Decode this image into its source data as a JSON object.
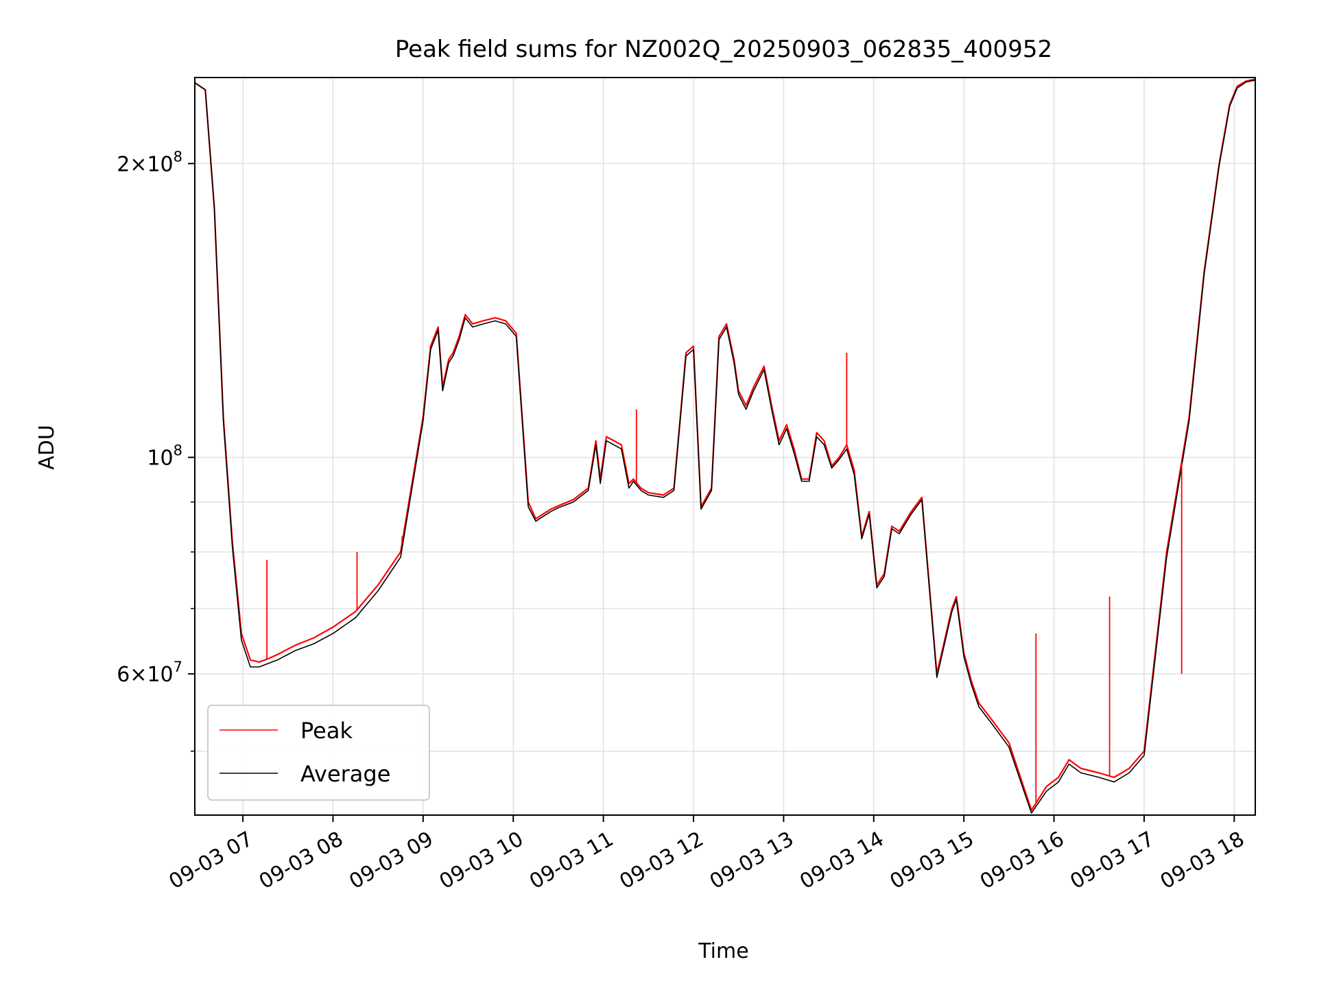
{
  "chart_data": {
    "type": "line",
    "title": "Peak field sums for NZ002Q_20250903_062835_400952",
    "xlabel": "Time",
    "ylabel": "ADU",
    "y_scale": "log",
    "ylim": [
      43000000,
      245000000
    ],
    "xlim": [
      "09-03 06:28",
      "09-03 18:14"
    ],
    "grid": true,
    "legend_position": "lower-left",
    "x_ticks": [
      "09-03 07",
      "09-03 08",
      "09-03 09",
      "09-03 10",
      "09-03 11",
      "09-03 12",
      "09-03 13",
      "09-03 14",
      "09-03 15",
      "09-03 16",
      "09-03 17",
      "09-03 18"
    ],
    "y_ticks": [
      {
        "value": 60000000,
        "base": "6",
        "mult": "×",
        "exp_base": "10",
        "exp": "7"
      },
      {
        "value": 100000000,
        "base": "",
        "mult": "",
        "exp_base": "10",
        "exp": "8"
      },
      {
        "value": 200000000,
        "base": "2",
        "mult": "×",
        "exp_base": "10",
        "exp": "8"
      }
    ],
    "colors": {
      "peak": "#ff0000",
      "average": "#000000",
      "grid": "#e0e0e0"
    },
    "series": [
      {
        "name": "Peak",
        "color": "#ff0000",
        "x": [
          "09-03 06:28",
          "09-03 06:35",
          "09-03 06:41",
          "09-03 06:47",
          "09-03 06:53",
          "09-03 06:59",
          "09-03 07:05",
          "09-03 07:11",
          "09-03 07:17",
          "09-03 07:23",
          "09-03 07:29",
          "09-03 07:35",
          "09-03 07:47",
          "09-03 08:00",
          "09-03 08:15",
          "09-03 08:30",
          "09-03 08:45",
          "09-03 09:00",
          "09-03 09:05",
          "09-03 09:10",
          "09-03 09:13",
          "09-03 09:17",
          "09-03 09:20",
          "09-03 09:24",
          "09-03 09:28",
          "09-03 09:33",
          "09-03 09:40",
          "09-03 09:48",
          "09-03 09:55",
          "09-03 10:02",
          "09-03 10:10",
          "09-03 10:15",
          "09-03 10:20",
          "09-03 10:25",
          "09-03 10:30",
          "09-03 10:40",
          "09-03 10:50",
          "09-03 10:55",
          "09-03 10:58",
          "09-03 11:02",
          "09-03 11:07",
          "09-03 11:12",
          "09-03 11:17",
          "09-03 11:20",
          "09-03 11:25",
          "09-03 11:30",
          "09-03 11:40",
          "09-03 11:47",
          "09-03 11:55",
          "09-03 12:00",
          "09-03 12:05",
          "09-03 12:12",
          "09-03 12:17",
          "09-03 12:22",
          "09-03 12:27",
          "09-03 12:30",
          "09-03 12:35",
          "09-03 12:40",
          "09-03 12:47",
          "09-03 12:52",
          "09-03 12:57",
          "09-03 13:02",
          "09-03 13:07",
          "09-03 13:12",
          "09-03 13:17",
          "09-03 13:22",
          "09-03 13:27",
          "09-03 13:32",
          "09-03 13:37",
          "09-03 13:42",
          "09-03 13:47",
          "09-03 13:52",
          "09-03 13:57",
          "09-03 14:02",
          "09-03 14:07",
          "09-03 14:12",
          "09-03 14:17",
          "09-03 14:25",
          "09-03 14:32",
          "09-03 14:42",
          "09-03 14:52",
          "09-03 14:55",
          "09-03 15:00",
          "09-03 15:05",
          "09-03 15:10",
          "09-03 15:18",
          "09-03 15:30",
          "09-03 15:45",
          "09-03 15:55",
          "09-03 16:03",
          "09-03 16:10",
          "09-03 16:18",
          "09-03 16:30",
          "09-03 16:40",
          "09-03 16:50",
          "09-03 17:00",
          "09-03 17:15",
          "09-03 17:30",
          "09-03 17:40",
          "09-03 17:50",
          "09-03 17:57",
          "09-03 18:02",
          "09-03 18:08",
          "09-03 18:14"
        ],
        "values": [
          242000000,
          238000000,
          180000000,
          110000000,
          82000000,
          66000000,
          62000000,
          61700000,
          62200000,
          62800000,
          63500000,
          64200000,
          65300000,
          67000000,
          69500000,
          74000000,
          80000000,
          110000000,
          130000000,
          136000000,
          118000000,
          126000000,
          128000000,
          133000000,
          140000000,
          137000000,
          138000000,
          139000000,
          138000000,
          134000000,
          90000000,
          86500000,
          87500000,
          88500000,
          89200000,
          90500000,
          93000000,
          104000000,
          95000000,
          105000000,
          104000000,
          103000000,
          94000000,
          95000000,
          93000000,
          92000000,
          91500000,
          93000000,
          128000000,
          130000000,
          89000000,
          93000000,
          133000000,
          137000000,
          126000000,
          117000000,
          113000000,
          118000000,
          124000000,
          113000000,
          104000000,
          108000000,
          102000000,
          95000000,
          95000000,
          106000000,
          104000000,
          98000000,
          100000000,
          103000000,
          97000000,
          83000000,
          88000000,
          74000000,
          76000000,
          85000000,
          84000000,
          88000000,
          91000000,
          60000000,
          70000000,
          72000000,
          63000000,
          59000000,
          56000000,
          54000000,
          51000000,
          43500000,
          46000000,
          47000000,
          49000000,
          48000000,
          47500000,
          47000000,
          48000000,
          50000000,
          80000000,
          110000000,
          155000000,
          200000000,
          230000000,
          240000000,
          243000000,
          244000000
        ]
      },
      {
        "name": "Average",
        "color": "#000000",
        "x": [
          "09-03 06:28",
          "09-03 06:35",
          "09-03 06:41",
          "09-03 06:47",
          "09-03 06:53",
          "09-03 06:59",
          "09-03 07:05",
          "09-03 07:11",
          "09-03 07:17",
          "09-03 07:23",
          "09-03 07:29",
          "09-03 07:35",
          "09-03 07:47",
          "09-03 08:00",
          "09-03 08:15",
          "09-03 08:30",
          "09-03 08:45",
          "09-03 09:00",
          "09-03 09:05",
          "09-03 09:10",
          "09-03 09:13",
          "09-03 09:17",
          "09-03 09:20",
          "09-03 09:24",
          "09-03 09:28",
          "09-03 09:33",
          "09-03 09:40",
          "09-03 09:48",
          "09-03 09:55",
          "09-03 10:02",
          "09-03 10:10",
          "09-03 10:15",
          "09-03 10:20",
          "09-03 10:25",
          "09-03 10:30",
          "09-03 10:40",
          "09-03 10:50",
          "09-03 10:55",
          "09-03 10:58",
          "09-03 11:02",
          "09-03 11:07",
          "09-03 11:12",
          "09-03 11:17",
          "09-03 11:20",
          "09-03 11:25",
          "09-03 11:30",
          "09-03 11:40",
          "09-03 11:47",
          "09-03 11:55",
          "09-03 12:00",
          "09-03 12:05",
          "09-03 12:12",
          "09-03 12:17",
          "09-03 12:22",
          "09-03 12:27",
          "09-03 12:30",
          "09-03 12:35",
          "09-03 12:40",
          "09-03 12:47",
          "09-03 12:52",
          "09-03 12:57",
          "09-03 13:02",
          "09-03 13:07",
          "09-03 13:12",
          "09-03 13:17",
          "09-03 13:22",
          "09-03 13:27",
          "09-03 13:32",
          "09-03 13:37",
          "09-03 13:42",
          "09-03 13:47",
          "09-03 13:52",
          "09-03 13:57",
          "09-03 14:02",
          "09-03 14:07",
          "09-03 14:12",
          "09-03 14:17",
          "09-03 14:25",
          "09-03 14:32",
          "09-03 14:42",
          "09-03 14:52",
          "09-03 14:55",
          "09-03 15:00",
          "09-03 15:05",
          "09-03 15:10",
          "09-03 15:18",
          "09-03 15:30",
          "09-03 15:45",
          "09-03 15:55",
          "09-03 16:03",
          "09-03 16:10",
          "09-03 16:18",
          "09-03 16:30",
          "09-03 16:40",
          "09-03 16:50",
          "09-03 17:00",
          "09-03 17:15",
          "09-03 17:30",
          "09-03 17:40",
          "09-03 17:50",
          "09-03 17:57",
          "09-03 18:02",
          "09-03 18:08",
          "09-03 18:14"
        ],
        "values": [
          242000000,
          238000000,
          180000000,
          109000000,
          81000000,
          65000000,
          61000000,
          61000000,
          61500000,
          62000000,
          62700000,
          63400000,
          64400000,
          66000000,
          68500000,
          73000000,
          79000000,
          109000000,
          129000000,
          135000000,
          117000000,
          125000000,
          127000000,
          132000000,
          139000000,
          136000000,
          137000000,
          138000000,
          137000000,
          133000000,
          89000000,
          86000000,
          87000000,
          88000000,
          88800000,
          90000000,
          92500000,
          103000000,
          94000000,
          104000000,
          103000000,
          102000000,
          93000000,
          94500000,
          92500000,
          91500000,
          91000000,
          92500000,
          127000000,
          129000000,
          88500000,
          92500000,
          132000000,
          136000000,
          125000000,
          116000000,
          112000000,
          117000000,
          123000000,
          112000000,
          103000000,
          107000000,
          101000000,
          94500000,
          94500000,
          105000000,
          103000000,
          97500000,
          99500000,
          102000000,
          96000000,
          82500000,
          87500000,
          73500000,
          75500000,
          84500000,
          83500000,
          87500000,
          90500000,
          59500000,
          69500000,
          71500000,
          62500000,
          58500000,
          55500000,
          53500000,
          50500000,
          43200000,
          45500000,
          46500000,
          48500000,
          47500000,
          47000000,
          46500000,
          47500000,
          49500000,
          79000000,
          109000000,
          154000000,
          199000000,
          229000000,
          239000000,
          242500000,
          243500000
        ]
      }
    ],
    "spikes": [
      {
        "series": "Peak",
        "x": "09-03 07:16",
        "value": 78500000
      },
      {
        "series": "Peak",
        "x": "09-03 08:16",
        "value": 80000000
      },
      {
        "series": "Peak",
        "x": "09-03 08:46",
        "value": 83000000
      },
      {
        "series": "Peak",
        "x": "09-03 11:22",
        "value": 112000000
      },
      {
        "series": "Peak",
        "x": "09-03 13:42",
        "value": 128000000
      },
      {
        "series": "Peak",
        "x": "09-03 15:48",
        "value": 66000000
      },
      {
        "series": "Peak",
        "x": "09-03 16:37",
        "value": 72000000
      },
      {
        "series": "Peak",
        "x": "09-03 17:25",
        "value": 60000000
      }
    ]
  }
}
